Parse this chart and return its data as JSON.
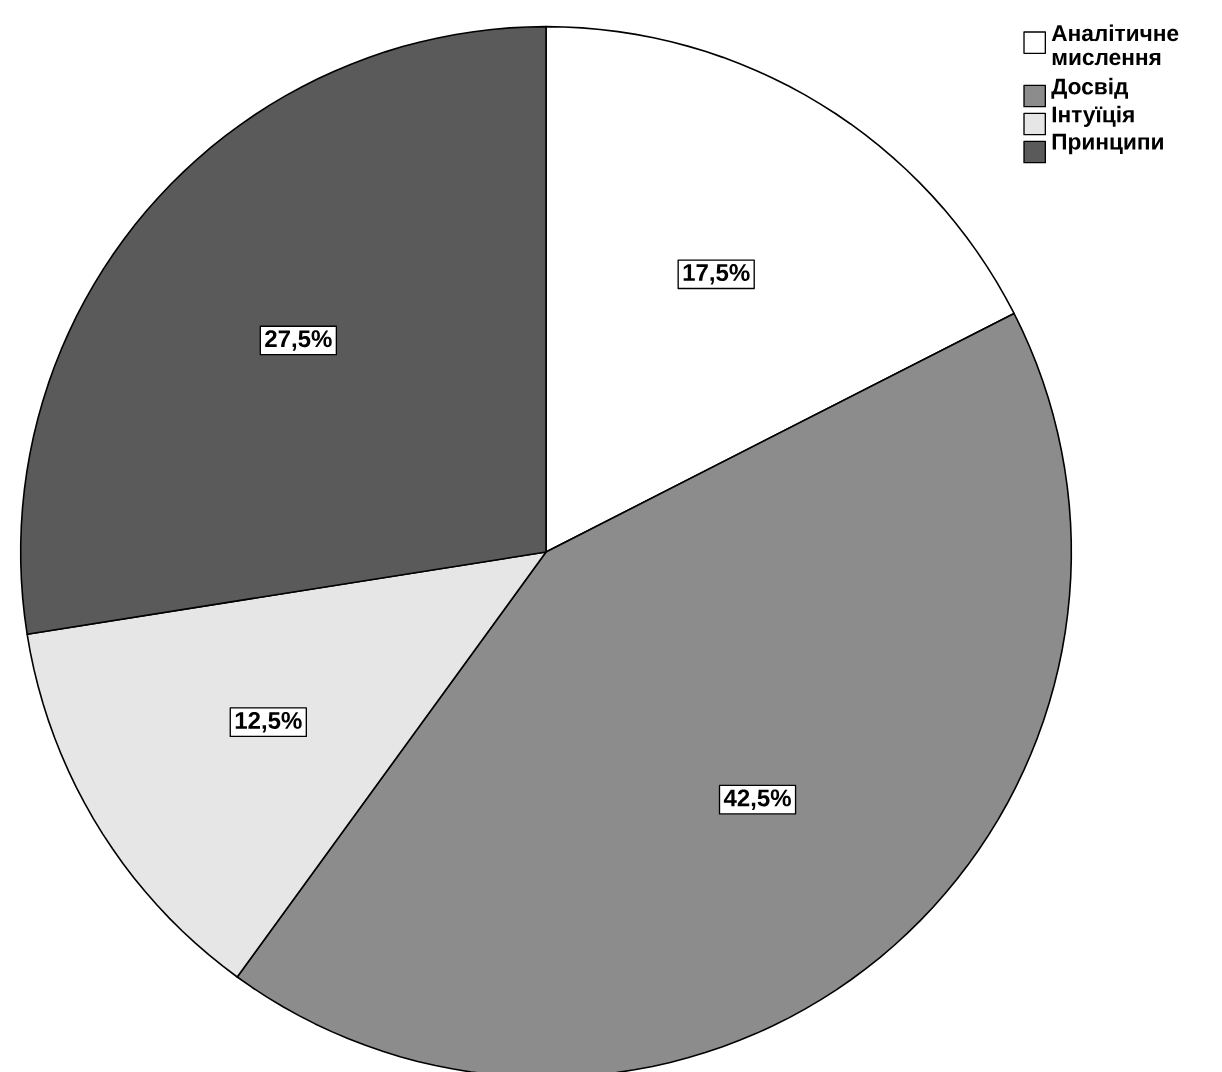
{
  "chart_data": {
    "type": "pie",
    "categories": [
      "Аналітичне мислення",
      "Досвід",
      "Інтуїція",
      "Принципи"
    ],
    "values": [
      17.5,
      42.5,
      12.5,
      27.5
    ],
    "colors": [
      "#ffffff",
      "#8c8c8c",
      "#e6e6e6",
      "#5a5a5a"
    ],
    "value_labels": [
      "17,5%",
      "42,5%",
      "12,5%",
      "27,5%"
    ],
    "legend": "top right"
  }
}
